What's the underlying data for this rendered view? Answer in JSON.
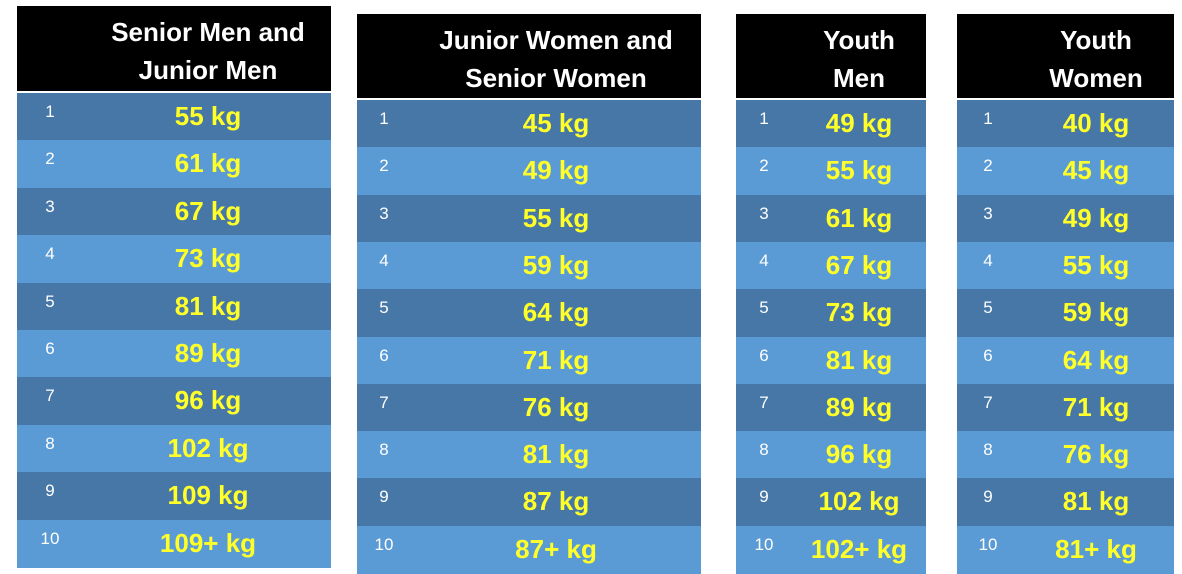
{
  "tables": [
    {
      "title_lines": [
        "Senior Men and",
        "Junior Men"
      ],
      "rows": [
        [
          "1",
          "55 kg"
        ],
        [
          "2",
          "61 kg"
        ],
        [
          "3",
          "67 kg"
        ],
        [
          "4",
          "73 kg"
        ],
        [
          "5",
          "81 kg"
        ],
        [
          "6",
          "89 kg"
        ],
        [
          "7",
          "96 kg"
        ],
        [
          "8",
          "102 kg"
        ],
        [
          "9",
          "109 kg"
        ],
        [
          "10",
          "109+ kg"
        ]
      ]
    },
    {
      "title_lines": [
        "Junior Women and",
        "Senior Women"
      ],
      "rows": [
        [
          "1",
          "45 kg"
        ],
        [
          "2",
          "49 kg"
        ],
        [
          "3",
          "55 kg"
        ],
        [
          "4",
          "59 kg"
        ],
        [
          "5",
          "64 kg"
        ],
        [
          "6",
          "71 kg"
        ],
        [
          "7",
          "76 kg"
        ],
        [
          "8",
          "81 kg"
        ],
        [
          "9",
          "87 kg"
        ],
        [
          "10",
          "87+ kg"
        ]
      ]
    },
    {
      "title_lines": [
        "Youth",
        "Men"
      ],
      "rows": [
        [
          "1",
          "49 kg"
        ],
        [
          "2",
          "55 kg"
        ],
        [
          "3",
          "61 kg"
        ],
        [
          "4",
          "67 kg"
        ],
        [
          "5",
          "73 kg"
        ],
        [
          "6",
          "81 kg"
        ],
        [
          "7",
          "89 kg"
        ],
        [
          "8",
          "96 kg"
        ],
        [
          "9",
          "102 kg"
        ],
        [
          "10",
          "102+ kg"
        ]
      ]
    },
    {
      "title_lines": [
        "Youth",
        "Women"
      ],
      "rows": [
        [
          "1",
          "40 kg"
        ],
        [
          "2",
          "45 kg"
        ],
        [
          "3",
          "49 kg"
        ],
        [
          "4",
          "55 kg"
        ],
        [
          "5",
          "59 kg"
        ],
        [
          "6",
          "64 kg"
        ],
        [
          "7",
          "71 kg"
        ],
        [
          "8",
          "76 kg"
        ],
        [
          "9",
          "81 kg"
        ],
        [
          "10",
          "81+ kg"
        ]
      ]
    }
  ]
}
